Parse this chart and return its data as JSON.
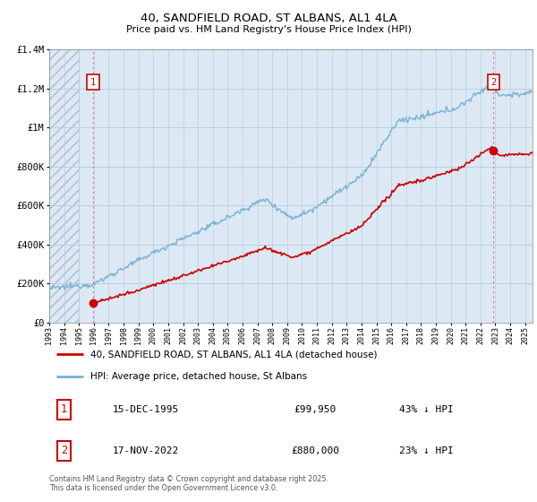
{
  "title_line1": "40, SANDFIELD ROAD, ST ALBANS, AL1 4LA",
  "title_line2": "Price paid vs. HM Land Registry's House Price Index (HPI)",
  "background_color": "#ffffff",
  "plot_bg_color": "#dce9f5",
  "hpi_color": "#7ab0d4",
  "price_color": "#cc0000",
  "annotation_box_color": "#cc0000",
  "ylim": [
    0,
    1400000
  ],
  "yticks": [
    0,
    200000,
    400000,
    600000,
    800000,
    1000000,
    1200000,
    1400000
  ],
  "ytick_labels": [
    "£0",
    "£200K",
    "£400K",
    "£600K",
    "£800K",
    "£1M",
    "£1.2M",
    "£1.4M"
  ],
  "sale1_t": 1995.96,
  "sale1_p": 99950,
  "sale1_label": "1",
  "sale2_t": 2022.88,
  "sale2_p": 880000,
  "sale2_label": "2",
  "legend_line1": "40, SANDFIELD ROAD, ST ALBANS, AL1 4LA (detached house)",
  "legend_line2": "HPI: Average price, detached house, St Albans",
  "annot1_label": "1",
  "annot1_date": "15-DEC-1995",
  "annot1_price": "£99,950",
  "annot1_hpi": "43% ↓ HPI",
  "annot2_label": "2",
  "annot2_date": "17-NOV-2022",
  "annot2_price": "£880,000",
  "annot2_hpi": "23% ↓ HPI",
  "footer": "Contains HM Land Registry data © Crown copyright and database right 2025.\nThis data is licensed under the Open Government Licence v3.0.",
  "xmin": 1993.0,
  "xmax": 2025.5
}
